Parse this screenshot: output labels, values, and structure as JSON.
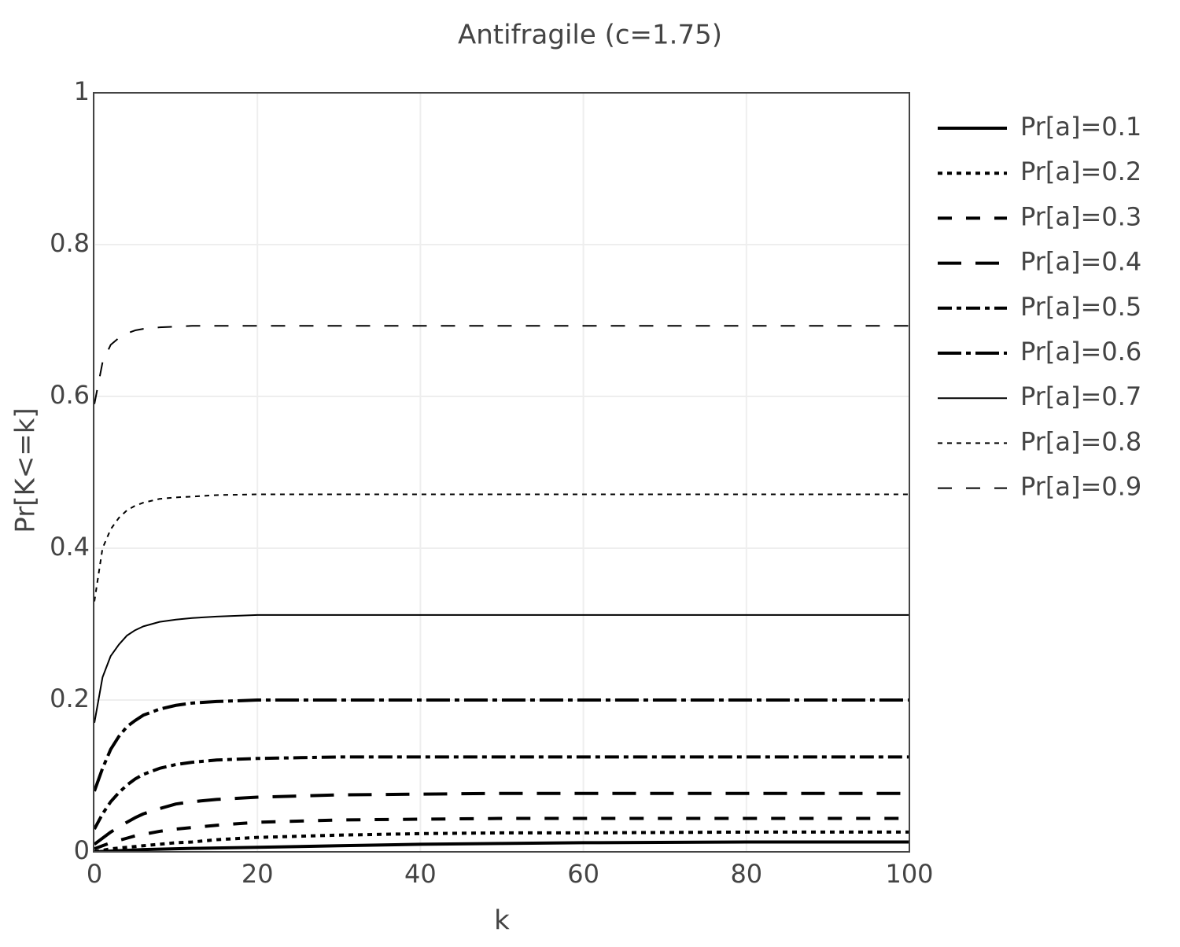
{
  "chart_data": {
    "type": "line",
    "title": "Antifragile (c=1.75)",
    "x_label": "k",
    "y_label": "Pr[K<=k]",
    "x": [
      0,
      1,
      2,
      3,
      4,
      5,
      6,
      8,
      10,
      12,
      15,
      20,
      30,
      40,
      50,
      60,
      80,
      100
    ],
    "xlim": [
      0,
      100
    ],
    "xticks": [
      0,
      20,
      40,
      60,
      80,
      100
    ],
    "ylim": [
      0,
      1
    ],
    "yticks": [
      0,
      0.2,
      0.4,
      0.6,
      0.8,
      1
    ],
    "grid": true,
    "legend": "right",
    "series": [
      {
        "name": "Pr[a]=0.1",
        "color": "#000000",
        "dash": "solid",
        "width": 4,
        "values": [
          0,
          0.0005,
          0.001,
          0.0015,
          0.002,
          0.0025,
          0.003,
          0.0035,
          0.004,
          0.0045,
          0.005,
          0.006,
          0.008,
          0.01,
          0.011,
          0.012,
          0.013,
          0.013
        ]
      },
      {
        "name": "Pr[a]=0.2",
        "color": "#000000",
        "dash": "dot",
        "width": 4,
        "values": [
          0,
          0.002,
          0.004,
          0.005,
          0.006,
          0.007,
          0.008,
          0.01,
          0.012,
          0.013,
          0.016,
          0.019,
          0.022,
          0.024,
          0.025,
          0.025,
          0.026,
          0.026
        ]
      },
      {
        "name": "Pr[a]=0.3",
        "color": "#000000",
        "dash": "dash",
        "width": 4,
        "values": [
          0.004,
          0.008,
          0.012,
          0.015,
          0.018,
          0.021,
          0.023,
          0.027,
          0.03,
          0.032,
          0.035,
          0.039,
          0.042,
          0.043,
          0.044,
          0.044,
          0.044,
          0.044
        ]
      },
      {
        "name": "Pr[a]=0.4",
        "color": "#000000",
        "dash": "longdash",
        "width": 4,
        "values": [
          0.01,
          0.018,
          0.026,
          0.033,
          0.039,
          0.045,
          0.05,
          0.057,
          0.063,
          0.066,
          0.069,
          0.072,
          0.075,
          0.076,
          0.077,
          0.077,
          0.077,
          0.077
        ]
      },
      {
        "name": "Pr[a]=0.5",
        "color": "#000000",
        "dash": "dashdot",
        "width": 4,
        "values": [
          0.03,
          0.05,
          0.066,
          0.078,
          0.088,
          0.096,
          0.102,
          0.11,
          0.115,
          0.118,
          0.121,
          0.123,
          0.125,
          0.125,
          0.125,
          0.125,
          0.125,
          0.125
        ]
      },
      {
        "name": "Pr[a]=0.6",
        "color": "#000000",
        "dash": "longdashdot",
        "width": 4,
        "values": [
          0.08,
          0.11,
          0.135,
          0.152,
          0.165,
          0.173,
          0.18,
          0.188,
          0.193,
          0.196,
          0.198,
          0.2,
          0.2,
          0.2,
          0.2,
          0.2,
          0.2,
          0.2
        ]
      },
      {
        "name": "Pr[a]=0.7",
        "color": "#000000",
        "dash": "solid",
        "width": 2,
        "values": [
          0.17,
          0.23,
          0.258,
          0.273,
          0.285,
          0.292,
          0.297,
          0.303,
          0.306,
          0.308,
          0.31,
          0.312,
          0.312,
          0.312,
          0.312,
          0.312,
          0.312,
          0.312
        ]
      },
      {
        "name": "Pr[a]=0.8",
        "color": "#000000",
        "dash": "dot",
        "width": 2,
        "values": [
          0.33,
          0.4,
          0.425,
          0.44,
          0.45,
          0.456,
          0.46,
          0.465,
          0.467,
          0.468,
          0.47,
          0.471,
          0.471,
          0.471,
          0.471,
          0.471,
          0.471,
          0.471
        ]
      },
      {
        "name": "Pr[a]=0.9",
        "color": "#000000",
        "dash": "dash",
        "width": 2,
        "values": [
          0.59,
          0.645,
          0.668,
          0.677,
          0.683,
          0.687,
          0.689,
          0.691,
          0.692,
          0.693,
          0.693,
          0.693,
          0.693,
          0.693,
          0.693,
          0.693,
          0.693,
          0.693
        ]
      }
    ]
  }
}
